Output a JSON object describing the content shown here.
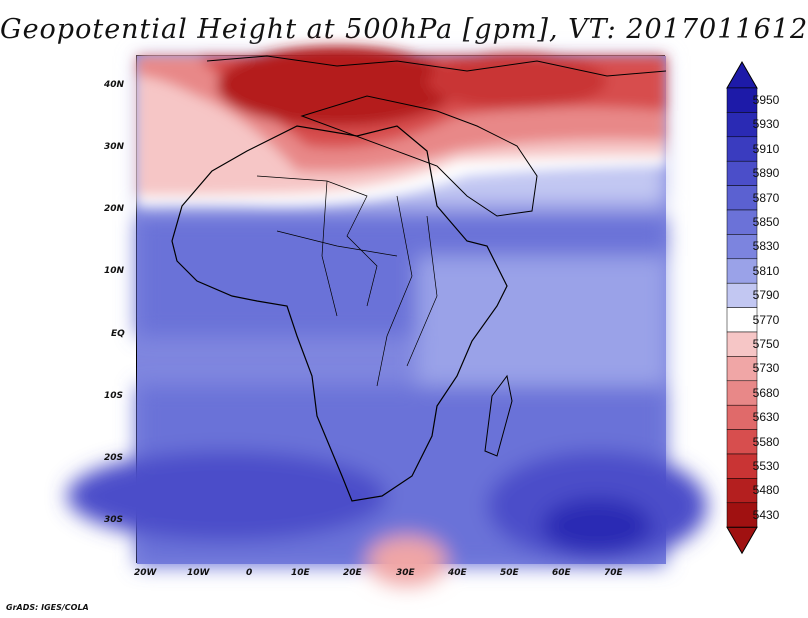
{
  "title": "Geopotential Height at 500hPa [gpm], VT: 2017011612",
  "credit": "GrADS: IGES/COLA",
  "map": {
    "lon_labels": [
      "20W",
      "10W",
      "0",
      "10E",
      "20E",
      "30E",
      "40E",
      "50E",
      "60E",
      "70E"
    ],
    "lat_labels": [
      "40N",
      "30N",
      "20N",
      "10N",
      "EQ",
      "10S",
      "20S",
      "30S"
    ],
    "extent": {
      "lon_min": -22,
      "lon_max": 80,
      "lat_min": -37,
      "lat_max": 45
    }
  },
  "colorbar": {
    "levels": [
      "5950",
      "5930",
      "5910",
      "5890",
      "5870",
      "5850",
      "5830",
      "5810",
      "5790",
      "5770",
      "5750",
      "5730",
      "5680",
      "5630",
      "5580",
      "5530",
      "5480",
      "5430"
    ],
    "colors": [
      "#1d1aa8",
      "#2a2ab4",
      "#3a3cbf",
      "#4b4ec9",
      "#5b61d1",
      "#6b72d8",
      "#7c84df",
      "#9aa2e8",
      "#c2c7f2",
      "#ffffff",
      "#f6c6c6",
      "#f0a6a6",
      "#e88888",
      "#e06a6a",
      "#d74e4e",
      "#c93434",
      "#b41f1f",
      "#a01111"
    ]
  }
}
